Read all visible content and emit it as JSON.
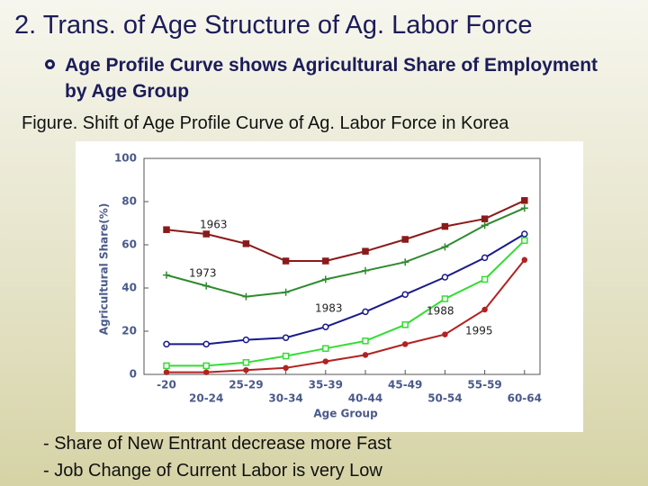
{
  "slide": {
    "title": "2. Trans. of Age Structure of Ag. Labor Force",
    "bullet": "Age Profile Curve shows Agricultural Share of Employment by Age Group",
    "caption": "Figure. Shift of Age Profile Curve of Ag. Labor Force in Korea",
    "notes": [
      "- Share of New Entrant decrease more Fast",
      "- Job Change of Current Labor is very Low"
    ]
  },
  "chart_data": {
    "type": "line",
    "x_label": "Age Group",
    "y_label": "Agricultural Share(%)",
    "categories": [
      "-20",
      "20-24",
      "25-29",
      "30-34",
      "35-39",
      "40-44",
      "45-49",
      "50-54",
      "55-59",
      "60-64"
    ],
    "ylim": [
      0,
      100
    ],
    "yticks": [
      0,
      20,
      40,
      60,
      80,
      100
    ],
    "series": [
      {
        "name": "1963",
        "color": "#8b1a1a",
        "values": [
          67,
          65,
          60.5,
          52.5,
          52.5,
          57,
          62.5,
          68.5,
          72,
          80.5
        ]
      },
      {
        "name": "1973",
        "color": "#2e8b2e",
        "values": [
          46,
          41,
          36,
          38,
          44,
          48,
          52,
          59,
          69,
          77
        ]
      },
      {
        "name": "1983",
        "color": "#1a1a8b",
        "values": [
          14,
          14,
          16,
          17,
          22,
          29,
          37,
          45,
          54,
          65
        ]
      },
      {
        "name": "1988",
        "color": "#33dd33",
        "values": [
          4,
          4,
          5.5,
          8.5,
          12,
          15.5,
          23,
          35,
          44,
          62
        ]
      },
      {
        "name": "1995",
        "color": "#b22222",
        "values": [
          1,
          1,
          2,
          3,
          6,
          9,
          14,
          18.5,
          30,
          53
        ]
      }
    ]
  }
}
